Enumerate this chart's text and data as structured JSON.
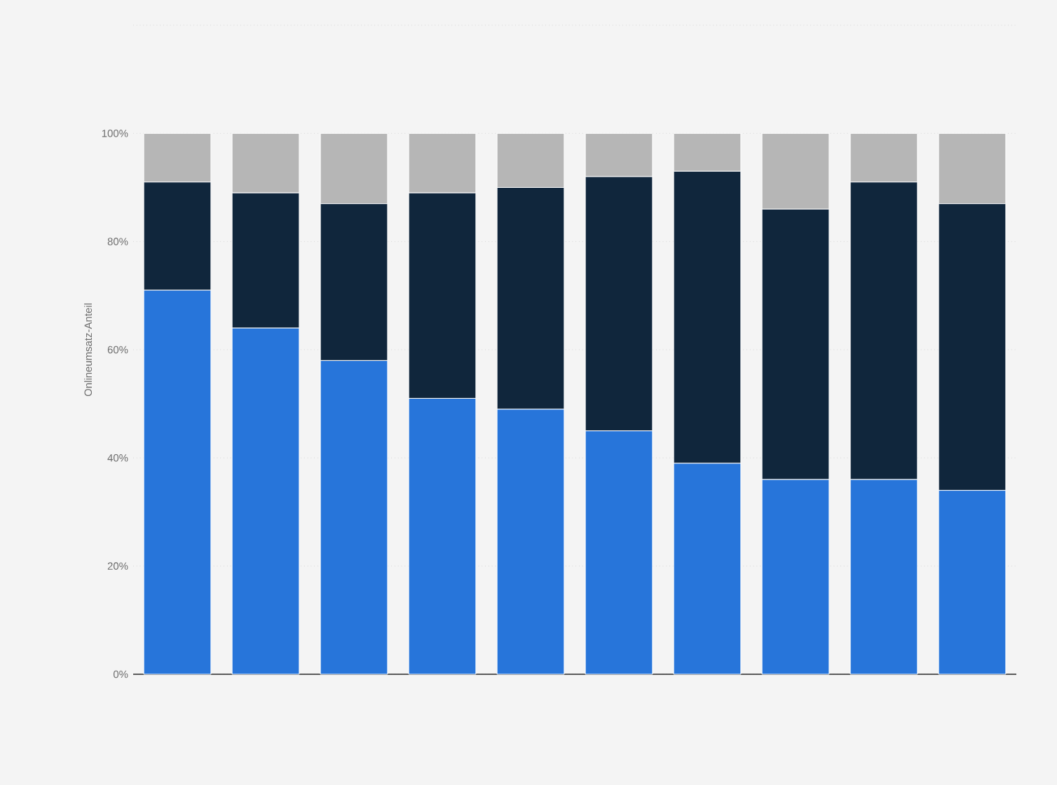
{
  "chart_data": {
    "type": "bar",
    "stacked": true,
    "ylabel": "Onlineumsatz-Anteil",
    "categories": [
      null,
      null,
      null,
      null,
      null,
      null,
      null,
      null,
      null,
      null
    ],
    "series": [
      {
        "color": "#2775da",
        "values": [
          71,
          64,
          58,
          51,
          49,
          45,
          39,
          36,
          36,
          34
        ]
      },
      {
        "color": "#10263c",
        "values": [
          20,
          25,
          29,
          38,
          41,
          47,
          54,
          50,
          55,
          53
        ]
      },
      {
        "color": "#b6b6b6",
        "values": [
          9,
          11,
          13,
          11,
          10,
          8,
          7,
          14,
          9,
          13
        ]
      }
    ],
    "ylim": [
      0,
      120
    ],
    "yticks": [
      {
        "value": 0,
        "label": "0%"
      },
      {
        "value": 20,
        "label": "20%"
      },
      {
        "value": 40,
        "label": "40%"
      },
      {
        "value": 60,
        "label": "60%"
      },
      {
        "value": 80,
        "label": "80%"
      },
      {
        "value": 100,
        "label": "100%"
      },
      {
        "value": 120,
        "label": null
      }
    ],
    "grid": "y"
  }
}
